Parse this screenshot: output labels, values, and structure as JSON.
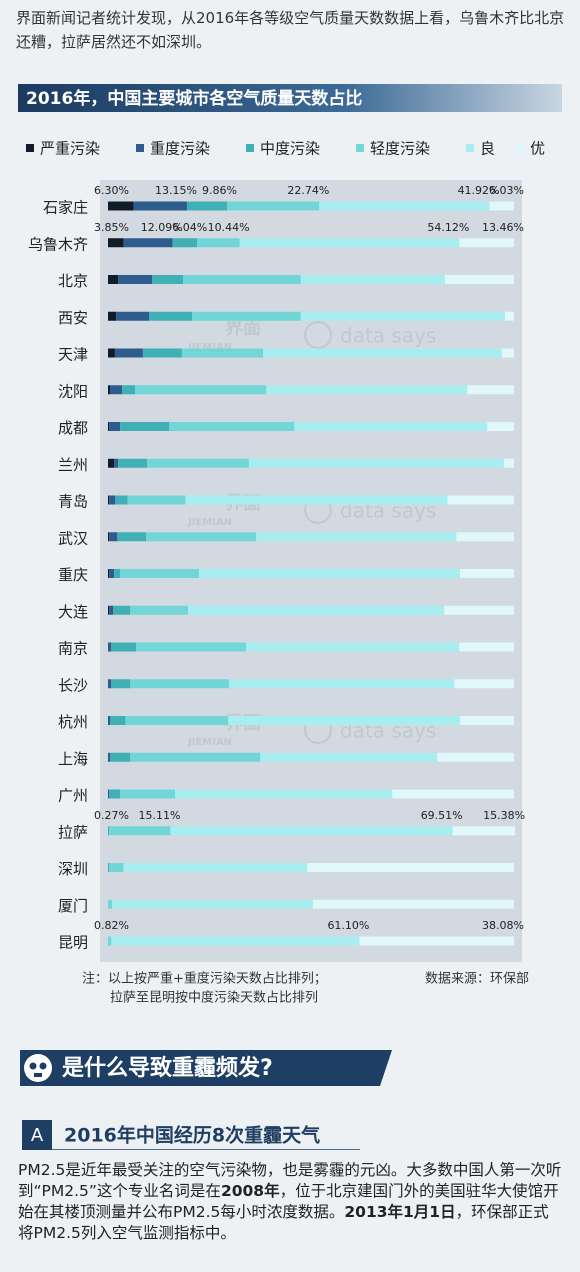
{
  "intro": "界面新闻记者统计发现，从2016年各等级空气质量天数数据上看，乌鲁木齐比北京还糟，拉萨居然还不如深圳。",
  "chart_data": {
    "type": "stacked_bar",
    "orientation": "horizontal",
    "title": "2016年，中国主要城市各空气质量天数占比",
    "categories": [
      "石家庄",
      "乌鲁木齐",
      "北京",
      "西安",
      "天津",
      "沈阳",
      "成都",
      "兰州",
      "青岛",
      "武汉",
      "重庆",
      "大连",
      "南京",
      "长沙",
      "杭州",
      "上海",
      "广州",
      "拉萨",
      "深圳",
      "厦门",
      "昆明"
    ],
    "xlim": [
      0,
      100
    ],
    "series": [
      {
        "name": "严重污染",
        "color": "#121c28",
        "values": [
          6.3,
          3.85,
          2.5,
          2,
          1.7,
          0.5,
          0.3,
          1.5,
          0.3,
          0.3,
          0.3,
          0.3,
          0,
          0,
          0,
          0,
          0,
          0,
          0,
          0,
          0
        ],
        "value_labels": [
          "6.30%",
          "3.85%",
          null,
          null,
          null,
          null,
          null,
          null,
          null,
          null,
          null,
          null,
          null,
          null,
          null,
          null,
          null,
          null,
          null,
          null,
          null
        ]
      },
      {
        "name": "重度污染",
        "color": "#2e5c8e",
        "values": [
          13.15,
          12.09,
          8.4,
          8.1,
          6.9,
          3,
          2.7,
          1,
          1.5,
          2,
          1.2,
          1,
          0.8,
          0.8,
          0.5,
          0.5,
          0.3,
          0,
          0,
          0,
          0
        ],
        "value_labels": [
          "13.15%",
          "12.09%",
          null,
          null,
          null,
          null,
          null,
          null,
          null,
          null,
          null,
          null,
          null,
          null,
          null,
          null,
          null,
          null,
          null,
          null,
          null
        ]
      },
      {
        "name": "中度污染",
        "color": "#3fb0b5",
        "values": [
          9.86,
          6.04,
          7.6,
          10.6,
          9.6,
          3.2,
          12.1,
          7.1,
          3,
          7.1,
          1.5,
          4.2,
          6.1,
          4.7,
          3.8,
          5,
          2.7,
          0.27,
          0.3,
          0,
          0
        ],
        "value_labels": [
          "9.86%",
          "6.04%",
          null,
          null,
          null,
          null,
          null,
          null,
          null,
          null,
          null,
          null,
          null,
          null,
          null,
          null,
          null,
          "0.27%",
          null,
          null,
          null
        ]
      },
      {
        "name": "轻度污染",
        "color": "#72d6d9",
        "values": [
          22.74,
          10.44,
          29,
          26.8,
          20,
          32.3,
          30.8,
          25.1,
          14.3,
          27.1,
          19.4,
          14.2,
          27.1,
          24.3,
          25.3,
          32,
          13.5,
          15.11,
          3.5,
          1,
          0.82
        ],
        "value_labels": [
          "22.74%",
          "10.44%",
          null,
          null,
          null,
          null,
          null,
          null,
          null,
          null,
          null,
          null,
          null,
          null,
          null,
          null,
          null,
          "15.11%",
          null,
          null,
          "0.82%"
        ]
      },
      {
        "name": "良",
        "color": "#a8eef0",
        "values": [
          41.92,
          54.12,
          35.5,
          50.3,
          58.8,
          49.5,
          47.5,
          62.8,
          64.5,
          49.3,
          64.3,
          63.1,
          52.5,
          55.5,
          57.1,
          43.6,
          53.5,
          69.51,
          45.3,
          49.5,
          61.1
        ],
        "value_labels": [
          "41.92%",
          "54.12%",
          null,
          null,
          null,
          null,
          null,
          null,
          null,
          null,
          null,
          null,
          null,
          null,
          null,
          null,
          null,
          "69.51%",
          null,
          null,
          "61.10%"
        ]
      },
      {
        "name": "优",
        "color": "#e0f8f9",
        "values": [
          6.03,
          13.46,
          17,
          2.2,
          3,
          11.5,
          6.6,
          2.5,
          16.4,
          14.2,
          13.3,
          17.2,
          13.5,
          14.7,
          13.3,
          18.9,
          30,
          15.38,
          50.9,
          49.5,
          38.08
        ],
        "value_labels": [
          "6.03%",
          "13.46%",
          null,
          null,
          null,
          null,
          null,
          null,
          null,
          null,
          null,
          null,
          null,
          null,
          null,
          null,
          null,
          "15.38%",
          null,
          null,
          "38.08%"
        ]
      }
    ],
    "notes": [
      "注：以上按严重+重度污染天数占比排列；",
      "拉萨至昆明按中度污染天数占比排列"
    ],
    "source": "数据来源：环保部",
    "watermark": {
      "logo": "界面",
      "logo_en": "JIEMIAN",
      "brand": "data says"
    }
  },
  "section": {
    "title": "是什么导致重霾频发?"
  },
  "subsection": {
    "letter": "A",
    "title": "2016年中国经历8次重霾天气"
  },
  "paragraph": [
    {
      "text": "PM2.5是近年最受关注的空气污染物，也是雾霾的元凶。大多数中国人第一次听到“PM2.5”这个专业名词是在",
      "bold": false
    },
    {
      "text": "2008年",
      "bold": true
    },
    {
      "text": "，位于北京建国门外的美国驻华大使馆开始在其楼顶测量并公布PM2.5每小时浓度数据。",
      "bold": false
    },
    {
      "text": "2013年1月1日",
      "bold": true
    },
    {
      "text": "，环保部正式将PM2.5列入空气监测指标中。",
      "bold": false
    }
  ]
}
